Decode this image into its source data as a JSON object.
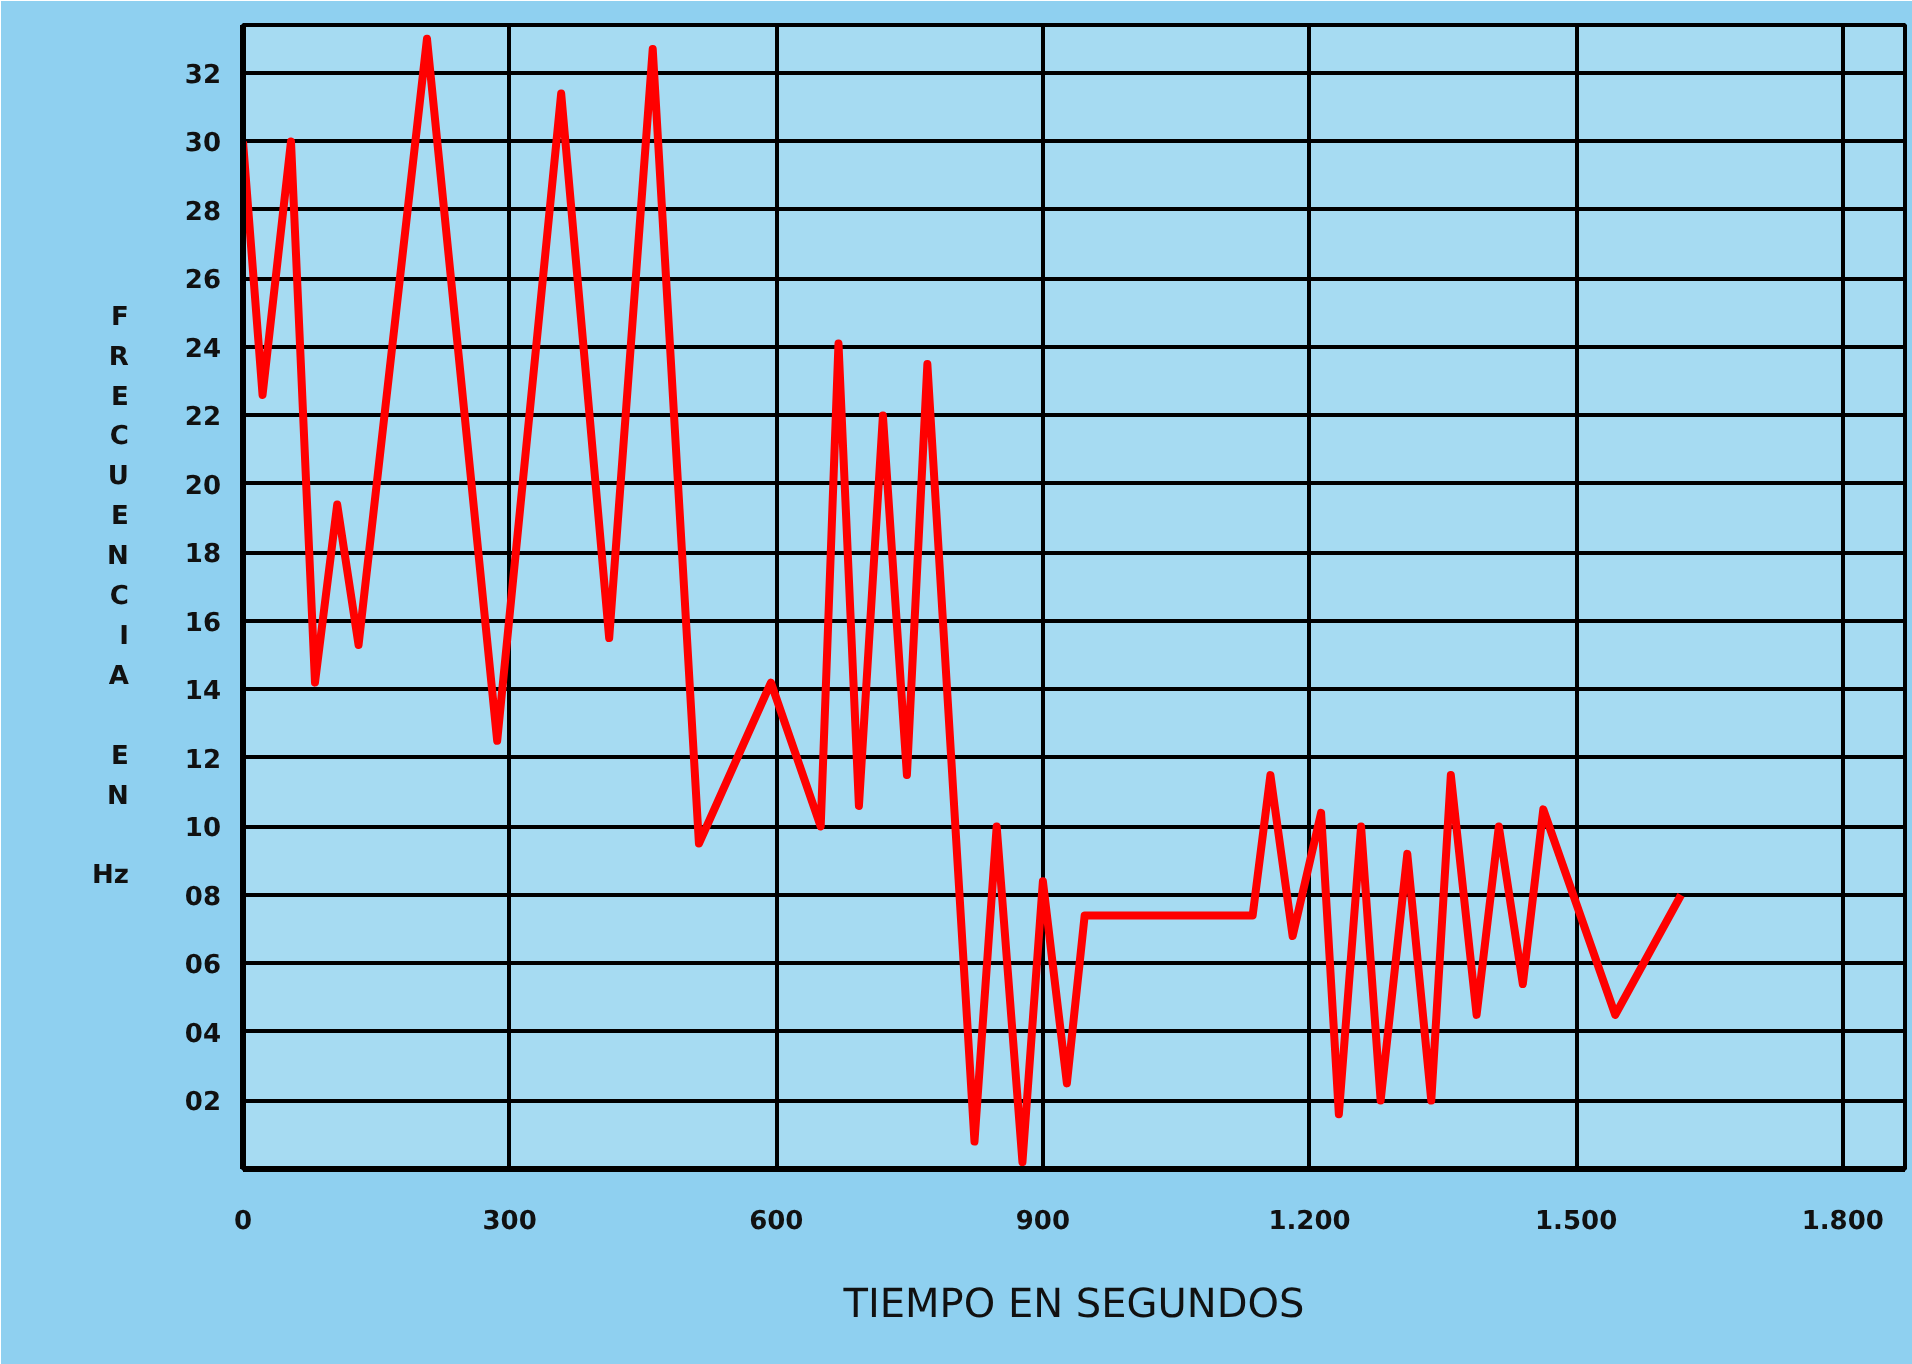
{
  "chart_data": {
    "type": "line",
    "xlabel": "TIEMPO EN SEGUNDOS",
    "ylabel": "FRECUENCIA EN Hz",
    "x": [
      0,
      22,
      54,
      81,
      106,
      130,
      207,
      286,
      358,
      412,
      461,
      513,
      594,
      650,
      670,
      693,
      720,
      747,
      770,
      823,
      848,
      877,
      900,
      927,
      947,
      1136,
      1156,
      1181,
      1213,
      1233,
      1258,
      1280,
      1310,
      1337,
      1359,
      1388,
      1413,
      1440,
      1463,
      1544,
      1618
    ],
    "series": [
      {
        "color": "#ff0000",
        "values": [
          30,
          22.6,
          30,
          14.2,
          19.4,
          15.3,
          33,
          12.5,
          31.4,
          15.5,
          32.7,
          9.5,
          14.2,
          10,
          24.1,
          10.6,
          22,
          11.5,
          23.5,
          0.8,
          10,
          0.2,
          8.4,
          2.5,
          7.4,
          7.4,
          11.5,
          6.8,
          10.4,
          1.6,
          10,
          2,
          9.2,
          2,
          11.5,
          4.5,
          10,
          5.4,
          10.5,
          4.5,
          8
        ]
      }
    ],
    "xlim": [
      0,
      1870
    ],
    "ylim": [
      0,
      33.4
    ],
    "xticks": [
      0,
      300,
      600,
      900,
      {
        "value": 1200,
        "label": "1.200"
      },
      {
        "value": 1500,
        "label": "1.500"
      },
      {
        "value": 1800,
        "label": "1.800"
      }
    ],
    "yticks": [
      {
        "value": 2,
        "label": "02"
      },
      {
        "value": 4,
        "label": "04"
      },
      {
        "value": 6,
        "label": "06"
      },
      {
        "value": 8,
        "label": "08"
      },
      10,
      12,
      14,
      16,
      18,
      20,
      22,
      24,
      26,
      28,
      30,
      32
    ],
    "grid": true,
    "marker": "none",
    "line_style": "solid"
  }
}
